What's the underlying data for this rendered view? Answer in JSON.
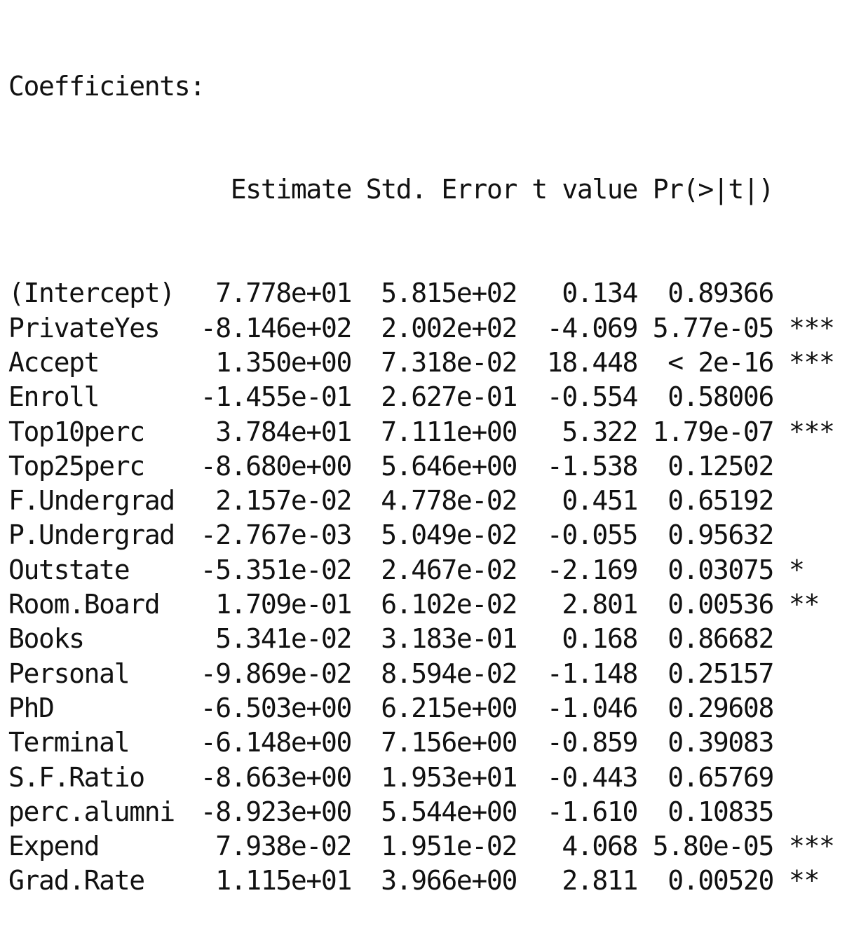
{
  "title": "Coefficients:",
  "headers": {
    "estimate": "Estimate",
    "std_error": "Std. Error",
    "t_value": "t value",
    "p_value": "Pr(>|t|)"
  },
  "rows": [
    {
      "name": "(Intercept)",
      "estimate": "7.778e+01",
      "std_error": "5.815e+02",
      "t_value": "0.134",
      "p_value": "0.89366",
      "signif": ""
    },
    {
      "name": "PrivateYes",
      "estimate": "-8.146e+02",
      "std_error": "2.002e+02",
      "t_value": "-4.069",
      "p_value": "5.77e-05",
      "signif": "***"
    },
    {
      "name": "Accept",
      "estimate": "1.350e+00",
      "std_error": "7.318e-02",
      "t_value": "18.448",
      "p_value": "< 2e-16",
      "signif": "***"
    },
    {
      "name": "Enroll",
      "estimate": "-1.455e-01",
      "std_error": "2.627e-01",
      "t_value": "-0.554",
      "p_value": "0.58006",
      "signif": ""
    },
    {
      "name": "Top10perc",
      "estimate": "3.784e+01",
      "std_error": "7.111e+00",
      "t_value": "5.322",
      "p_value": "1.79e-07",
      "signif": "***"
    },
    {
      "name": "Top25perc",
      "estimate": "-8.680e+00",
      "std_error": "5.646e+00",
      "t_value": "-1.538",
      "p_value": "0.12502",
      "signif": ""
    },
    {
      "name": "F.Undergrad",
      "estimate": "2.157e-02",
      "std_error": "4.778e-02",
      "t_value": "0.451",
      "p_value": "0.65192",
      "signif": ""
    },
    {
      "name": "P.Undergrad",
      "estimate": "-2.767e-03",
      "std_error": "5.049e-02",
      "t_value": "-0.055",
      "p_value": "0.95632",
      "signif": ""
    },
    {
      "name": "Outstate",
      "estimate": "-5.351e-02",
      "std_error": "2.467e-02",
      "t_value": "-2.169",
      "p_value": "0.03075",
      "signif": "*"
    },
    {
      "name": "Room.Board",
      "estimate": "1.709e-01",
      "std_error": "6.102e-02",
      "t_value": "2.801",
      "p_value": "0.00536",
      "signif": "**"
    },
    {
      "name": "Books",
      "estimate": "5.341e-02",
      "std_error": "3.183e-01",
      "t_value": "0.168",
      "p_value": "0.86682",
      "signif": ""
    },
    {
      "name": "Personal",
      "estimate": "-9.869e-02",
      "std_error": "8.594e-02",
      "t_value": "-1.148",
      "p_value": "0.25157",
      "signif": ""
    },
    {
      "name": "PhD",
      "estimate": "-6.503e+00",
      "std_error": "6.215e+00",
      "t_value": "-1.046",
      "p_value": "0.29608",
      "signif": ""
    },
    {
      "name": "Terminal",
      "estimate": "-6.148e+00",
      "std_error": "7.156e+00",
      "t_value": "-0.859",
      "p_value": "0.39083",
      "signif": ""
    },
    {
      "name": "S.F.Ratio",
      "estimate": "-8.663e+00",
      "std_error": "1.953e+01",
      "t_value": "-0.443",
      "p_value": "0.65769",
      "signif": ""
    },
    {
      "name": "perc.alumni",
      "estimate": "-8.923e+00",
      "std_error": "5.544e+00",
      "t_value": "-1.610",
      "p_value": "0.10835",
      "signif": ""
    },
    {
      "name": "Expend",
      "estimate": "7.938e-02",
      "std_error": "1.951e-02",
      "t_value": "4.068",
      "p_value": "5.80e-05",
      "signif": "***"
    },
    {
      "name": "Grad.Rate",
      "estimate": "1.115e+01",
      "std_error": "3.966e+00",
      "t_value": "2.811",
      "p_value": "0.00520",
      "signif": "**"
    }
  ]
}
